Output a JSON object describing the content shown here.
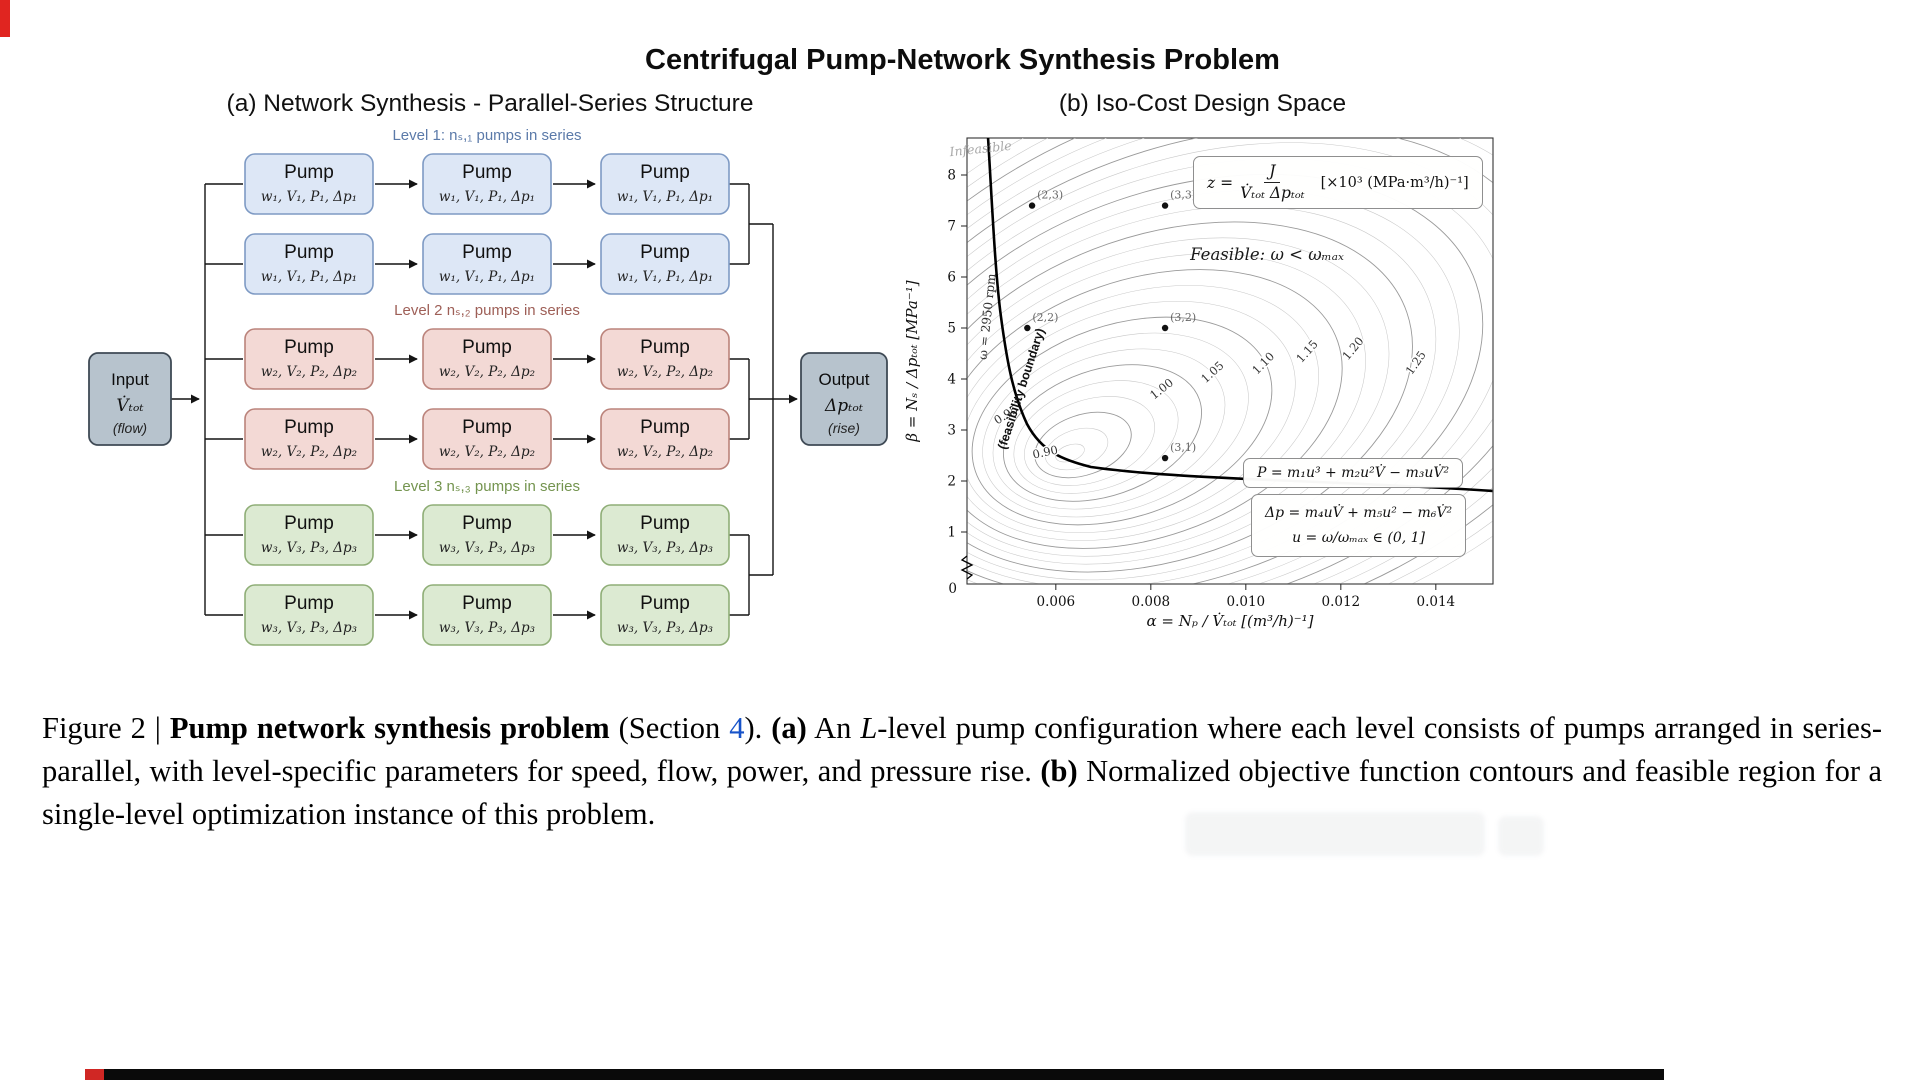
{
  "page": {
    "title": "Centrifugal Pump-Network Synthesis Problem"
  },
  "panel_a": {
    "header": "(a) Network Synthesis - Parallel-Series Structure",
    "levels": [
      {
        "label": "Level 1: nₛ,₁ pumps in series",
        "pump_title": "Pump",
        "pump_params": "w₁, V₁, P₁, Δp₁",
        "colors": {
          "fill": "#dde7f6",
          "stroke": "#7e9ac4",
          "label": "#5b7aa9"
        }
      },
      {
        "label": "Level 2 nₛ,₂ pumps in series",
        "pump_title": "Pump",
        "pump_params": "w₂, V₂, P₂, Δp₂",
        "colors": {
          "fill": "#f3d9d5",
          "stroke": "#bb837b",
          "label": "#9e5f57"
        }
      },
      {
        "label": "Level 3 nₛ,₃ pumps in series",
        "pump_title": "Pump",
        "pump_params": "w₃, V₃, P₃, Δp₃",
        "colors": {
          "fill": "#dcead2",
          "stroke": "#8fae77",
          "label": "#74944f"
        }
      }
    ],
    "input": {
      "title": "Input",
      "symbol": "V̇ₜₒₜ",
      "note": "(flow)"
    },
    "output": {
      "title": "Output",
      "symbol": "Δpₜₒₜ",
      "note": "(rise)"
    },
    "io_colors": {
      "fill": "#b7c3cd",
      "stroke": "#3f4a55"
    }
  },
  "panel_b": {
    "header": "(b) Iso-Cost Design Space",
    "chart_data": {
      "type": "contour",
      "xlabel": "α = Nₚ / V̇ₜₒₜ   [(m³/h)⁻¹]",
      "ylabel": "β = Nₛ / Δpₜₒₜ   [MPa⁻¹]",
      "x_ticks": [
        "0.006",
        "0.008",
        "0.010",
        "0.012",
        "0.014"
      ],
      "y_ticks": [
        1,
        2,
        3,
        4,
        5,
        6,
        7,
        8
      ],
      "origin": "0",
      "xlim": [
        0.0041,
        0.0152
      ],
      "ylim": [
        0,
        8.8
      ],
      "contour_labels": [
        "0.90",
        "0.95",
        "1.00",
        "1.05",
        "1.10",
        "1.15",
        "1.20",
        "1.25"
      ],
      "points": [
        {
          "label": "(2,3)",
          "alpha": 0.0055,
          "beta": 7.4
        },
        {
          "label": "(3,3)",
          "alpha": 0.0083,
          "beta": 7.4
        },
        {
          "label": "(2,2)",
          "alpha": 0.0054,
          "beta": 5.0
        },
        {
          "label": "(3,2)",
          "alpha": 0.0083,
          "beta": 5.0
        },
        {
          "label": "(3,1)",
          "alpha": 0.0083,
          "beta": 2.45
        }
      ],
      "annotations": {
        "infeasible": "Infeasible",
        "boundary_rpm": "ω = 2950 rpm",
        "boundary_name": "(feasibility boundary)",
        "feasible": "Feasible: ω < ωₘₐₓ"
      },
      "objective_box": {
        "lhs": "z =",
        "numerator": "J",
        "denominator": "V̇ₜₒₜ Δpₜₒₜ",
        "units": "[×10³ (MPa·m³/h)⁻¹]"
      },
      "model_box": {
        "line1": "P = m₁u³ + m₂u²V̇ − m₃uV̇²",
        "line2": "Δp = m₄uV̇ + m₅u² − m₆V̇²",
        "line3": "u = ω/ωₘₐₓ ∈ (0, 1]"
      }
    }
  },
  "caption": {
    "s1": "Figure 2 | ",
    "s2": "Pump network synthesis problem",
    "s3": " (Section ",
    "s4": "4",
    "s5": "). ",
    "s6": "(a)",
    "s7": " An ",
    "s8": "L",
    "s9": "-level pump configuration where each level consists of pumps arranged in series-parallel, with level-specific parameters for speed, flow, power, and pressure rise. ",
    "s10": "(b)",
    "s11": " Normalized objective function contours and feasible region for a single-level optimization instance of this problem."
  }
}
